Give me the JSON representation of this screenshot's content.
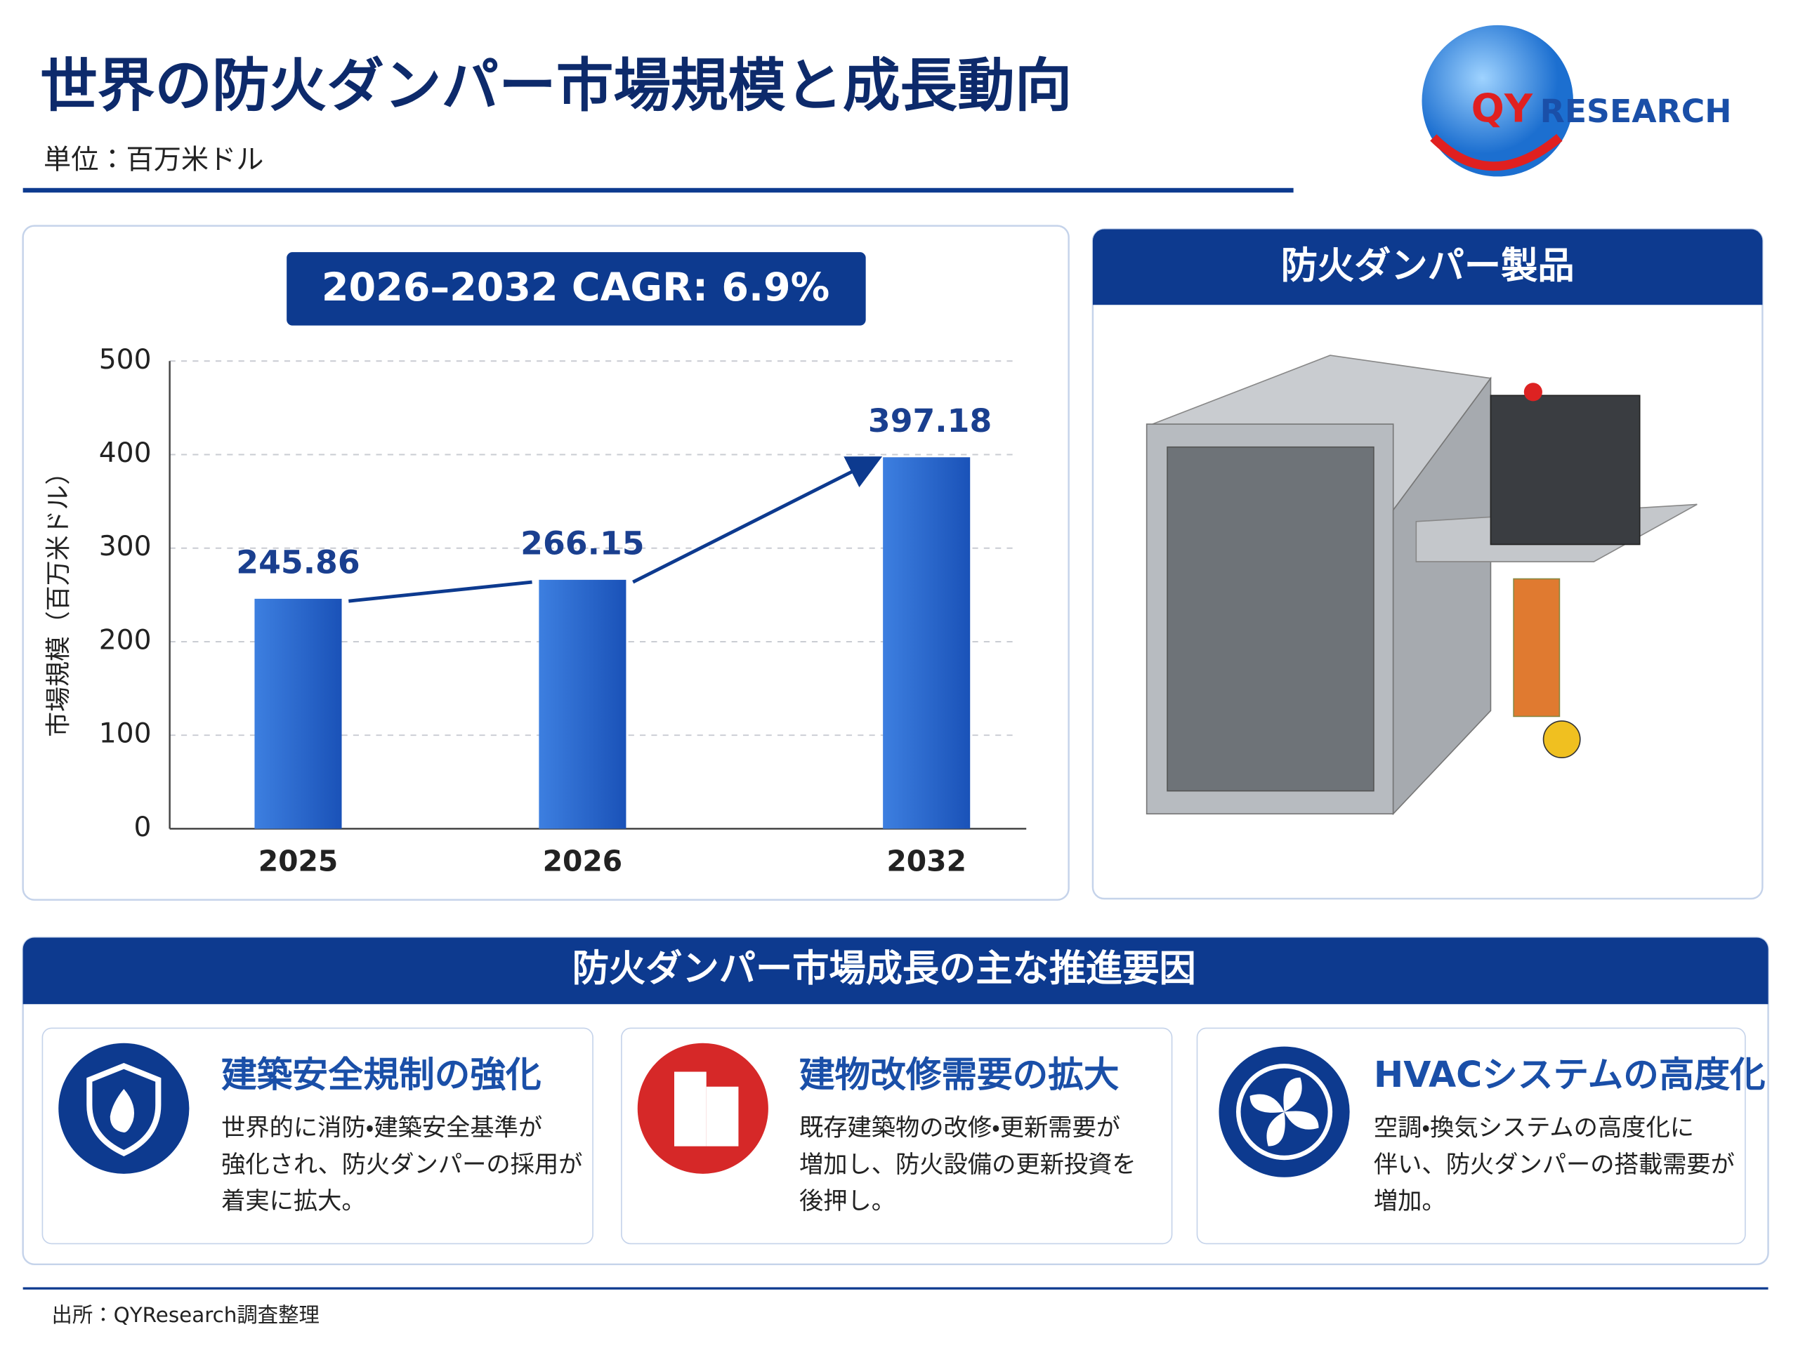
{
  "header": {
    "title": "世界の防火ダンパー市場規模と成長動向",
    "unit": "単位：百万米ドル",
    "logo": {
      "q": "QY",
      "r": "RESEARCH"
    }
  },
  "chart_data": {
    "type": "bar",
    "annotation": "2026–2032 CAGR: 6.9%",
    "y_label": "市場規模（百万米ドル）",
    "categories": [
      "2025",
      "2026",
      "2032"
    ],
    "values": [
      245.86,
      266.15,
      397.18
    ],
    "color": "#1f5fc8",
    "ylim": [
      0,
      500
    ],
    "yticks": [
      0,
      100,
      200,
      300,
      400,
      500
    ],
    "grid": true
  },
  "product": {
    "title": "防火ダンパー製品"
  },
  "drivers": {
    "title": "防火ダンパー市場成長の主な推進要因",
    "cards": [
      {
        "title": "建築安全規制の強化",
        "lines": [
          "世界的に消防・建築安全基準が",
          "強化され、防火ダンパーの採用が",
          "着実に拡大。"
        ]
      },
      {
        "title": "建物改修需要の拡大",
        "lines": [
          "既存建築物の改修・更新需要が",
          "増加し、防火設備の更新投資を",
          "後押し。"
        ]
      },
      {
        "title": "HVACシステムの高度化",
        "lines": [
          "空調・換気システムの高度化に",
          "伴い、防火ダンパーの搭載需要が",
          "増加。"
        ]
      }
    ]
  },
  "source": "出所：QYResearch調査整理"
}
